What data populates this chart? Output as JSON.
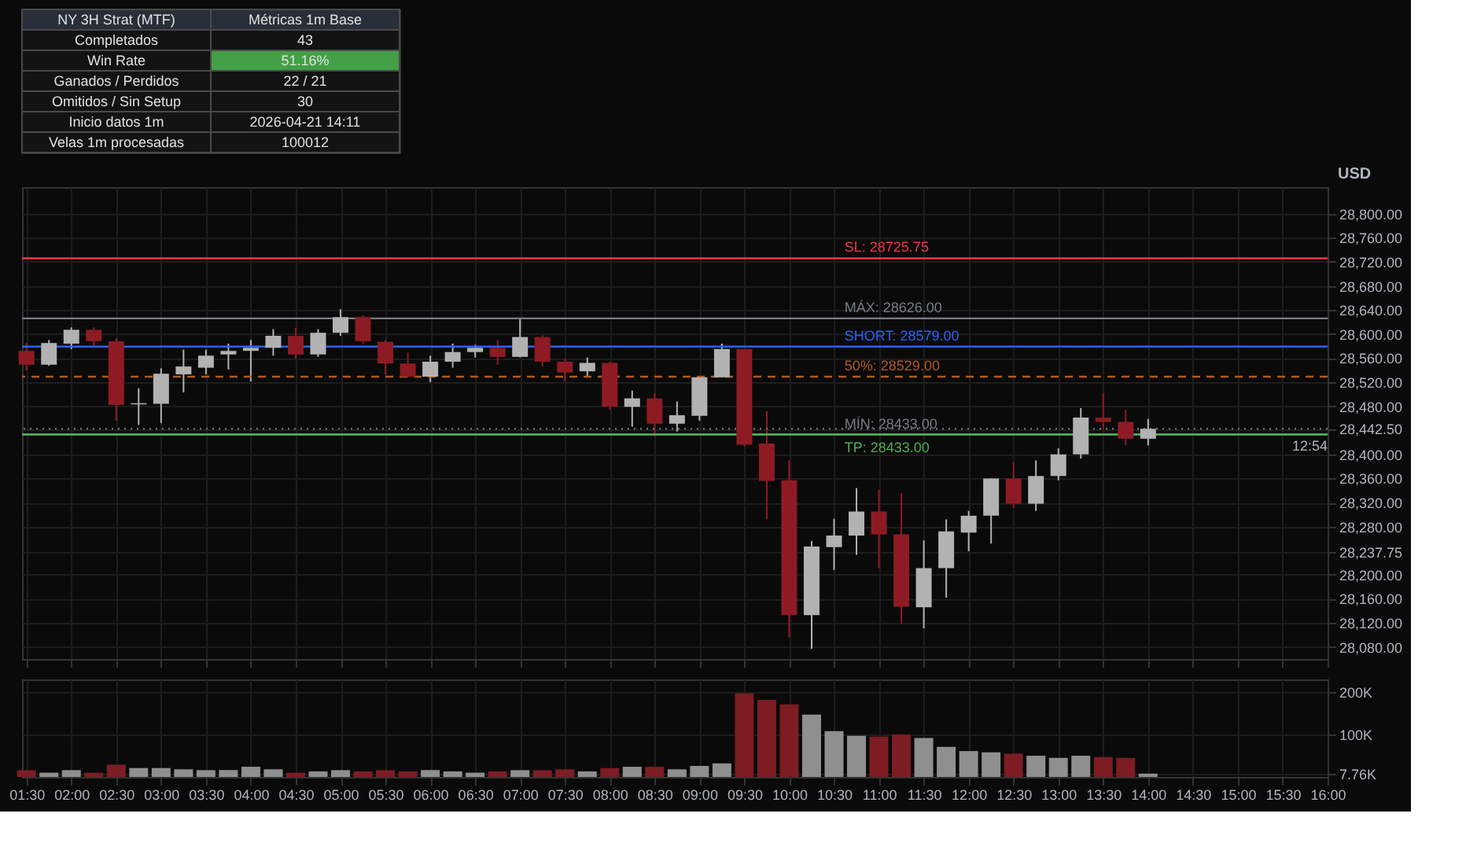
{
  "chart_data": [
    {
      "type": "other",
      "annotations": [
        "NY 3H Strat (MTF)",
        "Métricas 1m Base",
        "Completados",
        "43",
        "Win Rate",
        "51.16%",
        "Ganados / Perdidos",
        "22 / 21",
        "Omitidos / Sin Setup",
        "30",
        "Inicio datos 1m",
        "2026-04-21 14:11",
        "Velas 1m procesadas",
        "100012"
      ],
      "colors": [
        null,
        null,
        null,
        null,
        null,
        "#43a047",
        null,
        null,
        null,
        null,
        null,
        null,
        null,
        null
      ]
    },
    {
      "type": "candlestick",
      "ylabel": "USD",
      "grid": true,
      "tick_labels": "y",
      "x": [
        1.5,
        1.75,
        2,
        2.25,
        2.5,
        2.75,
        3,
        3.25,
        3.5,
        3.75,
        4,
        4.25,
        4.5,
        4.75,
        5,
        5.25,
        5.5,
        5.75,
        6,
        6.25,
        6.5,
        6.75,
        7,
        7.25,
        7.5,
        7.75,
        8,
        8.25,
        8.5,
        8.75,
        9,
        9.25,
        9.5,
        9.75,
        10,
        10.25,
        10.5,
        10.75,
        11,
        11.25,
        11.5,
        11.75,
        12,
        12.25,
        12.5,
        12.75,
        13,
        13.25,
        13.5,
        13.75,
        14
      ],
      "ohlc": [
        [
          28572,
          28585,
          28539,
          28549
        ],
        [
          28549,
          28590,
          28547,
          28585
        ],
        [
          28584,
          28611,
          28575,
          28607
        ],
        [
          28607,
          28611,
          28579,
          28588
        ],
        [
          28588,
          28593,
          28456,
          28482
        ],
        [
          28483,
          28510,
          28449,
          28485
        ],
        [
          28484,
          28543,
          28452,
          28534
        ],
        [
          28533,
          28574,
          28503,
          28546
        ],
        [
          28544,
          28574,
          28533,
          28564
        ],
        [
          28566,
          28584,
          28541,
          28572
        ],
        [
          28572,
          28590,
          28521,
          28577
        ],
        [
          28577,
          28608,
          28564,
          28597
        ],
        [
          28597,
          28610,
          28559,
          28566
        ],
        [
          28566,
          28608,
          28562,
          28602
        ],
        [
          28602,
          28641,
          28597,
          28628
        ],
        [
          28628,
          28631,
          28584,
          28588
        ],
        [
          28587,
          28590,
          28533,
          28551
        ],
        [
          28551,
          28569,
          28528,
          28529
        ],
        [
          28529,
          28564,
          28520,
          28554
        ],
        [
          28554,
          28584,
          28544,
          28570
        ],
        [
          28570,
          28582,
          28561,
          28577
        ],
        [
          28577,
          28590,
          28549,
          28562
        ],
        [
          28562,
          28625,
          28561,
          28595
        ],
        [
          28595,
          28598,
          28546,
          28554
        ],
        [
          28554,
          28559,
          28521,
          28536
        ],
        [
          28538,
          28561,
          28529,
          28552
        ],
        [
          28552,
          28554,
          28474,
          28479
        ],
        [
          28479,
          28506,
          28446,
          28493
        ],
        [
          28493,
          28502,
          28429,
          28451
        ],
        [
          28451,
          28488,
          28438,
          28465
        ],
        [
          28464,
          28528,
          28456,
          28528
        ],
        [
          28528,
          28584,
          28528,
          28575
        ],
        [
          28575,
          28575,
          28413,
          28416
        ],
        [
          28418,
          28472,
          28292,
          28356
        ],
        [
          28357,
          28390,
          28096,
          28133
        ],
        [
          28133,
          28256,
          28077,
          28247
        ],
        [
          28246,
          28293,
          28208,
          28265
        ],
        [
          28265,
          28344,
          28233,
          28305
        ],
        [
          28305,
          28341,
          28211,
          28267
        ],
        [
          28267,
          28336,
          28118,
          28147
        ],
        [
          28146,
          28257,
          28111,
          28211
        ],
        [
          28211,
          28292,
          28162,
          28272
        ],
        [
          28270,
          28306,
          28239,
          28298
        ],
        [
          28298,
          28360,
          28252,
          28360
        ],
        [
          28360,
          28387,
          28311,
          28318
        ],
        [
          28318,
          28390,
          28306,
          28364
        ],
        [
          28364,
          28410,
          28357,
          28400
        ],
        [
          28400,
          28477,
          28393,
          28461
        ],
        [
          28461,
          28502,
          28441,
          28454
        ],
        [
          28454,
          28474,
          28415,
          28426
        ],
        [
          28426,
          28459,
          28415,
          28442.5
        ]
      ],
      "colors": [
        "#8e1b24",
        "#b2b2b2",
        "#b2b2b2",
        "#8e1b24",
        "#8e1b24",
        "#b2b2b2",
        "#b2b2b2",
        "#b2b2b2",
        "#b2b2b2",
        "#b2b2b2",
        "#b2b2b2",
        "#b2b2b2",
        "#8e1b24",
        "#b2b2b2",
        "#b2b2b2",
        "#8e1b24",
        "#8e1b24",
        "#8e1b24",
        "#b2b2b2",
        "#b2b2b2",
        "#b2b2b2",
        "#8e1b24",
        "#b2b2b2",
        "#8e1b24",
        "#8e1b24",
        "#b2b2b2",
        "#8e1b24",
        "#b2b2b2",
        "#8e1b24",
        "#b2b2b2",
        "#b2b2b2",
        "#b2b2b2",
        "#8e1b24",
        "#8e1b24",
        "#8e1b24",
        "#b2b2b2",
        "#b2b2b2",
        "#b2b2b2",
        "#8e1b24",
        "#8e1b24",
        "#b2b2b2",
        "#b2b2b2",
        "#b2b2b2",
        "#b2b2b2",
        "#8e1b24",
        "#b2b2b2",
        "#b2b2b2",
        "#b2b2b2",
        "#8e1b24",
        "#8e1b24",
        "#b2b2b2"
      ],
      "xlim": [
        1.45,
        16.0
      ],
      "xticks": [
        {
          "value": 1.5,
          "label": null
        },
        {
          "value": 2,
          "label": null
        },
        {
          "value": 2.5,
          "label": null
        },
        {
          "value": 3,
          "label": null
        },
        {
          "value": 3.5,
          "label": null
        },
        {
          "value": 4,
          "label": null
        },
        {
          "value": 4.5,
          "label": null
        },
        {
          "value": 5,
          "label": null
        },
        {
          "value": 5.5,
          "label": null
        },
        {
          "value": 6,
          "label": null
        },
        {
          "value": 6.5,
          "label": null
        },
        {
          "value": 7,
          "label": null
        },
        {
          "value": 7.5,
          "label": null
        },
        {
          "value": 8,
          "label": null
        },
        {
          "value": 8.5,
          "label": null
        },
        {
          "value": 9,
          "label": null
        },
        {
          "value": 9.5,
          "label": null
        },
        {
          "value": 10,
          "label": null
        },
        {
          "value": 10.5,
          "label": null
        },
        {
          "value": 11,
          "label": null
        },
        {
          "value": 11.5,
          "label": null
        },
        {
          "value": 12,
          "label": null
        },
        {
          "value": 12.5,
          "label": null
        },
        {
          "value": 13,
          "label": null
        },
        {
          "value": 13.5,
          "label": null
        },
        {
          "value": 14,
          "label": null
        },
        {
          "value": 14.5,
          "label": null
        },
        {
          "value": 15,
          "label": null
        },
        {
          "value": 15.5,
          "label": null
        },
        {
          "value": 16,
          "label": null
        }
      ],
      "ylim": [
        28060,
        28844
      ],
      "yticks": [
        {
          "value": 28080,
          "label": "28,080.00"
        },
        {
          "value": 28120,
          "label": "28,120.00"
        },
        {
          "value": 28160,
          "label": "28,160.00"
        },
        {
          "value": 28200,
          "label": "28,200.00"
        },
        {
          "value": 28237.75,
          "label": "28,237.75"
        },
        {
          "value": 28280,
          "label": "28,280.00"
        },
        {
          "value": 28320,
          "label": "28,320.00"
        },
        {
          "value": 28360,
          "label": "28,360.00"
        },
        {
          "value": 28400,
          "label": "28,400.00"
        },
        {
          "value": 28442.5,
          "label": "28,442.50"
        },
        {
          "value": 28480,
          "label": "28,480.00"
        },
        {
          "value": 28520,
          "label": "28,520.00"
        },
        {
          "value": 28560,
          "label": "28,560.00"
        },
        {
          "value": 28600,
          "label": "28,600.00"
        },
        {
          "value": 28640,
          "label": "28,640.00"
        },
        {
          "value": 28680,
          "label": "28,680.00"
        },
        {
          "value": 28720,
          "label": "28,720.00"
        },
        {
          "value": 28760,
          "label": "28,760.00"
        },
        {
          "value": 28800,
          "label": "28,800.00"
        }
      ],
      "ref_lines": [
        {
          "axis": "y",
          "value": 28725.75,
          "label": "SL: 28725.75",
          "color": "#f23645",
          "line_style": "solid"
        },
        {
          "axis": "y",
          "value": 28626,
          "label": "MÁX: 28626.00",
          "color": "#787b86",
          "line_style": "solid"
        },
        {
          "axis": "y",
          "value": 28579,
          "label": "SHORT: 28579.00",
          "color": "#2962ff",
          "line_style": "solid"
        },
        {
          "axis": "y",
          "value": 28529,
          "label": "50%: 28529.00",
          "color": "#b35a1f",
          "line_style": "dashed"
        },
        {
          "axis": "y",
          "value": 28433,
          "label": "MÍN: 28433.00",
          "color": "#787b86",
          "line_style": "solid"
        },
        {
          "axis": "y",
          "value": 28433,
          "label": "TP: 28433.00",
          "color": "#4caf50",
          "line_style": "solid"
        },
        {
          "axis": "y",
          "value": 28442.5,
          "color": "#6a6d78",
          "line_style": "dotted"
        }
      ],
      "annotations": [
        {
          "text": "12:54",
          "x": 16.0,
          "y": 28442.5
        }
      ]
    },
    {
      "type": "bar",
      "grid": true,
      "x": [
        1.5,
        1.75,
        2,
        2.25,
        2.5,
        2.75,
        3,
        3.25,
        3.5,
        3.75,
        4,
        4.25,
        4.5,
        4.75,
        5,
        5.25,
        5.5,
        5.75,
        6,
        6.25,
        6.5,
        6.75,
        7,
        7.25,
        7.5,
        7.75,
        8,
        8.25,
        8.5,
        8.75,
        9,
        9.25,
        9.5,
        9.75,
        10,
        10.25,
        10.5,
        10.75,
        11,
        11.25,
        11.5,
        11.75,
        12,
        12.25,
        12.5,
        12.75,
        13,
        13.25,
        13.5,
        13.75,
        14
      ],
      "values": [
        16000,
        10000,
        16000,
        10000,
        29000,
        21000,
        21000,
        18000,
        16000,
        16000,
        24000,
        18000,
        10000,
        13000,
        16000,
        13000,
        16000,
        13000,
        16000,
        13000,
        10000,
        13000,
        16000,
        16000,
        18000,
        13000,
        21000,
        24000,
        24000,
        18000,
        26000,
        32000,
        197000,
        182000,
        171000,
        147000,
        108000,
        97000,
        95000,
        100000,
        92000,
        71000,
        61000,
        58000,
        55000,
        50000,
        45000,
        50000,
        47000,
        45000,
        7760
      ],
      "colors": [
        "#7d1c23",
        "#8f8f8f",
        "#8f8f8f",
        "#7d1c23",
        "#7d1c23",
        "#8f8f8f",
        "#8f8f8f",
        "#8f8f8f",
        "#8f8f8f",
        "#8f8f8f",
        "#8f8f8f",
        "#8f8f8f",
        "#7d1c23",
        "#8f8f8f",
        "#8f8f8f",
        "#7d1c23",
        "#7d1c23",
        "#7d1c23",
        "#8f8f8f",
        "#8f8f8f",
        "#8f8f8f",
        "#7d1c23",
        "#8f8f8f",
        "#7d1c23",
        "#7d1c23",
        "#8f8f8f",
        "#7d1c23",
        "#8f8f8f",
        "#7d1c23",
        "#8f8f8f",
        "#8f8f8f",
        "#8f8f8f",
        "#7d1c23",
        "#7d1c23",
        "#7d1c23",
        "#8f8f8f",
        "#8f8f8f",
        "#8f8f8f",
        "#7d1c23",
        "#7d1c23",
        "#8f8f8f",
        "#8f8f8f",
        "#8f8f8f",
        "#8f8f8f",
        "#7d1c23",
        "#8f8f8f",
        "#8f8f8f",
        "#8f8f8f",
        "#7d1c23",
        "#7d1c23",
        "#8f8f8f"
      ],
      "xlim": [
        1.45,
        16.0
      ],
      "xticks": [
        {
          "value": 1.5,
          "label": "01:30"
        },
        {
          "value": 2,
          "label": "02:00"
        },
        {
          "value": 2.5,
          "label": "02:30"
        },
        {
          "value": 3,
          "label": "03:00"
        },
        {
          "value": 3.5,
          "label": "03:30"
        },
        {
          "value": 4,
          "label": "04:00"
        },
        {
          "value": 4.5,
          "label": "04:30"
        },
        {
          "value": 5,
          "label": "05:00"
        },
        {
          "value": 5.5,
          "label": "05:30"
        },
        {
          "value": 6,
          "label": "06:00"
        },
        {
          "value": 6.5,
          "label": "06:30"
        },
        {
          "value": 7,
          "label": "07:00"
        },
        {
          "value": 7.5,
          "label": "07:30"
        },
        {
          "value": 8,
          "label": "08:00"
        },
        {
          "value": 8.5,
          "label": "08:30"
        },
        {
          "value": 9,
          "label": "09:00"
        },
        {
          "value": 9.5,
          "label": "09:30"
        },
        {
          "value": 10,
          "label": "10:00"
        },
        {
          "value": 10.5,
          "label": "10:30"
        },
        {
          "value": 11,
          "label": "11:00"
        },
        {
          "value": 11.5,
          "label": "11:30"
        },
        {
          "value": 12,
          "label": "12:00"
        },
        {
          "value": 12.5,
          "label": "12:30"
        },
        {
          "value": 13,
          "label": "13:00"
        },
        {
          "value": 13.5,
          "label": "13:30"
        },
        {
          "value": 14,
          "label": "14:00"
        },
        {
          "value": 14.5,
          "label": "14:30"
        },
        {
          "value": 15,
          "label": "15:00"
        },
        {
          "value": 15.5,
          "label": "15:30"
        },
        {
          "value": 16,
          "label": "16:00"
        }
      ],
      "ylim": [
        0,
        230000
      ],
      "yticks": [
        {
          "value": 7760,
          "label": "7.76K"
        },
        {
          "value": 100000,
          "label": "100K"
        },
        {
          "value": 200000,
          "label": "200K"
        }
      ]
    }
  ]
}
